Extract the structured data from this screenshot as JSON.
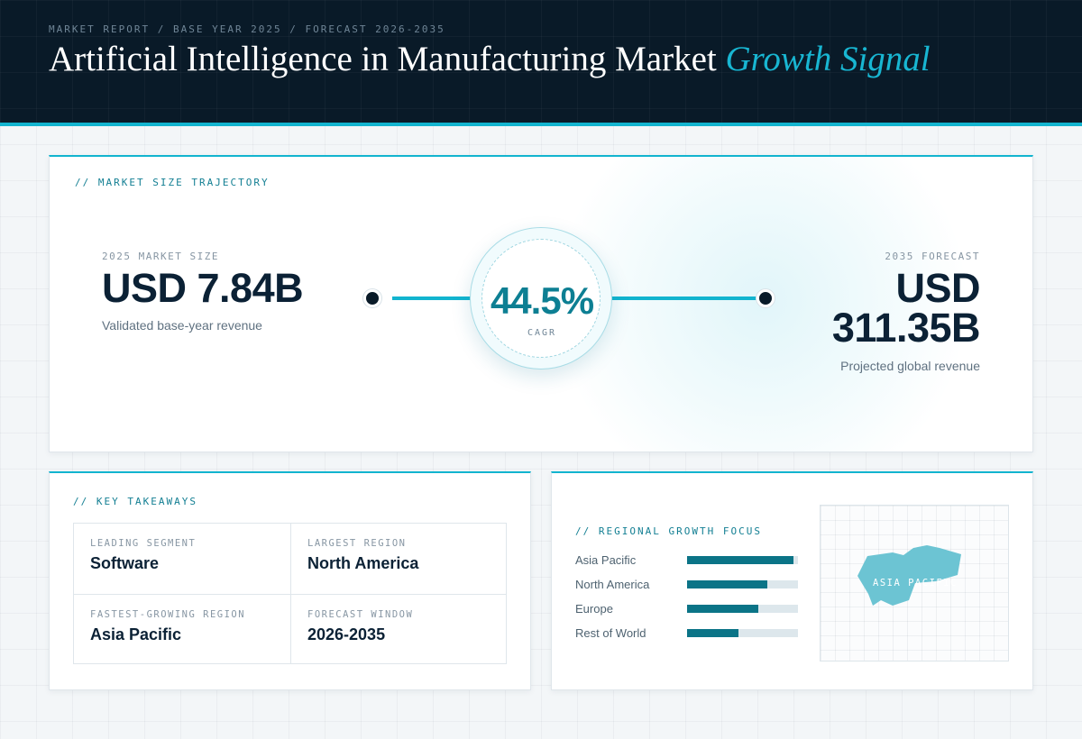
{
  "header": {
    "kicker": "MARKET REPORT / BASE YEAR 2025 / FORECAST 2026-2035",
    "title_main": "Artificial Intelligence in Manufacturing Market ",
    "title_accent": "Growth Signal"
  },
  "trajectory": {
    "label": "// MARKET SIZE TRAJECTORY",
    "start": {
      "label": "2025 MARKET SIZE",
      "value": "USD 7.84B",
      "sub": "Validated base-year revenue"
    },
    "cagr": {
      "value": "44.5%",
      "label": "CAGR"
    },
    "end": {
      "label": "2035 FORECAST",
      "value_line1": "USD",
      "value_line2": "311.35B",
      "sub": "Projected global revenue"
    }
  },
  "takeaways": {
    "label": "// KEY TAKEAWAYS",
    "items": [
      {
        "label": "LEADING SEGMENT",
        "value": "Software"
      },
      {
        "label": "LARGEST REGION",
        "value": "North America"
      },
      {
        "label": "FASTEST-GROWING REGION",
        "value": "Asia Pacific"
      },
      {
        "label": "FORECAST WINDOW",
        "value": "2026-2035"
      }
    ]
  },
  "regional": {
    "label": "// REGIONAL GROWTH FOCUS",
    "regions": [
      {
        "name": "Asia Pacific",
        "share": 0.96
      },
      {
        "name": "North America",
        "share": 0.72
      },
      {
        "name": "Europe",
        "share": 0.64
      },
      {
        "name": "Rest of World",
        "share": 0.46
      }
    ],
    "map_label": "ASIA PACIFIC",
    "map_color": "#6cc4d3"
  },
  "colors": {
    "accent": "#12b4cf",
    "bar": "#0b7487",
    "navy": "#091a28"
  }
}
